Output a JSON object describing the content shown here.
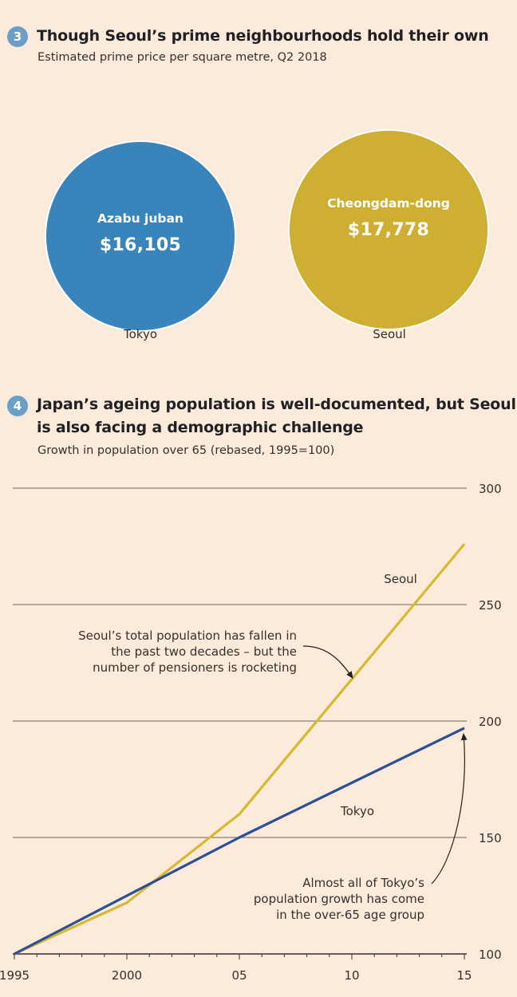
{
  "section3": {
    "badge": "3",
    "title": "Though Seoul’s prime neighbourhoods hold their own",
    "subtitle": "Estimated prime price per square metre, Q2 2018",
    "bubbles": [
      {
        "neighbourhood": "Azabu juban",
        "price": "$16,105",
        "city": "Tokyo",
        "color": "#3a84bc"
      },
      {
        "neighbourhood": "Cheongdam-dong",
        "price": "$17,778",
        "city": "Seoul",
        "color": "#cfaf31"
      }
    ]
  },
  "section4": {
    "badge": "4",
    "title_line1": "Japan’s ageing population is well-documented, but Seoul",
    "title_line2": "is also facing a demographic challenge",
    "subtitle": "Growth in population over 65 (rebased, 1995=100)"
  },
  "chart_data": [
    {
      "type": "bubble",
      "title": "Though Seoul’s prime neighbourhoods hold their own",
      "subtitle": "Estimated prime price per square metre, Q2 2018",
      "categories": [
        "Tokyo",
        "Seoul"
      ],
      "labels": [
        "Azabu juban",
        "Cheongdam-dong"
      ],
      "values": [
        16105,
        17778
      ],
      "colors": [
        "#3a84bc",
        "#cfaf31"
      ]
    },
    {
      "type": "line",
      "title": "Japan’s ageing population is well-documented, but Seoul is also facing a demographic challenge",
      "subtitle": "Growth in population over 65 (rebased, 1995=100)",
      "x_ticks": [
        "1995",
        "2000",
        "05",
        "10",
        "15"
      ],
      "y_ticks": [
        "100",
        "150",
        "200",
        "250",
        "300"
      ],
      "xlim": [
        1995,
        2015
      ],
      "ylim": [
        100,
        300
      ],
      "grid": true,
      "series": [
        {
          "name": "Seoul",
          "color": "#d8b92e",
          "points": [
            [
              1995,
              100
            ],
            [
              2000,
              122
            ],
            [
              2005,
              160
            ],
            [
              2015,
              276
            ]
          ]
        },
        {
          "name": "Tokyo",
          "color": "#2c4f98",
          "points": [
            [
              1995,
              100
            ],
            [
              2005,
              150
            ],
            [
              2015,
              197
            ]
          ]
        }
      ],
      "annotations": [
        {
          "id": "seoul",
          "lines": [
            "Seoul’s total population has fallen in",
            "the past two decades – but the",
            "number of pensioners is rocketing"
          ]
        },
        {
          "id": "tokyo",
          "lines": [
            "Almost all of Tokyo’s",
            "population growth has come",
            "in the over-65 age group"
          ]
        }
      ]
    }
  ]
}
